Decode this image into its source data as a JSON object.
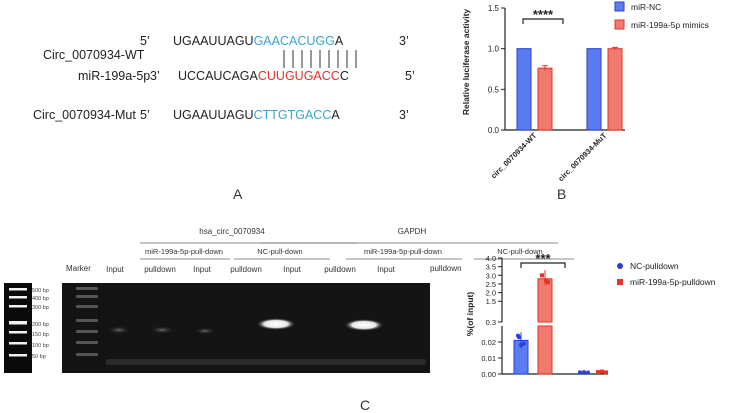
{
  "panelA": {
    "rows": [
      {
        "name": "Circ_0070934-WT",
        "left_end": "5’",
        "seq_plain": "UGAAUUAGU",
        "seq_colored": "GAACACUGG",
        "seq_tail": "A",
        "right_end": "3’",
        "color": "cyan"
      },
      {
        "name": "miR-199a-5p",
        "left_end": "3’",
        "seq_plain": "UCCAUCAGA",
        "seq_colored": "CUUGUGACC",
        "seq_tail": "C",
        "right_end": "5’",
        "color": "red"
      },
      {
        "name": "Circ_0070934-Mut",
        "left_end": "5’",
        "seq_plain": "UGAAUUAGU",
        "seq_colored": "CTTGTGACC",
        "seq_tail": "A",
        "right_end": "3’",
        "color": "cyan"
      }
    ],
    "label": "A"
  },
  "panelB": {
    "label": "B",
    "ylabel": "Relative luciferase activity",
    "yticks": [
      "0.0",
      "0.5",
      "1.0",
      "1.5"
    ],
    "categories": [
      "circ_0070934-WT",
      "circ_0070934-MuT"
    ],
    "legend": [
      "miR-NC",
      "miR-199a-5p mimics"
    ],
    "significance": "****"
  },
  "panelC": {
    "label": "C",
    "gel": {
      "group_headers": [
        "hsa_circ_0070934",
        "GAPDH"
      ],
      "sub_headers": [
        "miR-199a-5p-pull-down",
        "NC-pull-down",
        "miR-199a-5p-pull-down",
        "NC-pull-down"
      ],
      "lane_labels": [
        "Input",
        "pulldown",
        "Input",
        "pulldown",
        "Input",
        "pulldown",
        "Input",
        "pulldown"
      ],
      "marker_label": "Marker",
      "ladder": [
        "500 bp",
        "400 bp",
        "300 bp",
        "200 bp",
        "150 bp",
        "100 bp",
        "50 bp"
      ]
    },
    "plot": {
      "ylabel": "%(of input)",
      "yticks_top": [
        "4.0",
        "3.5",
        "3.0",
        "2.5",
        "2.0",
        "1.5",
        "0.3"
      ],
      "yticks_bottom": [
        "0.02",
        "0.01",
        "0.00"
      ],
      "legend": [
        "NC-pulldown",
        "miR-199a-5p-pulldown"
      ],
      "significance": "***"
    }
  },
  "colors": {
    "blue": "#5b7cf0",
    "red": "#f07a6e",
    "blue_dark": "#2a3fd6",
    "red_dark": "#e3352a",
    "cyan": "#3aa3d3"
  },
  "chart_data": [
    {
      "type": "bar",
      "categories": [
        "circ_0070934-WT",
        "circ_0070934-MuT"
      ],
      "series": [
        {
          "name": "miR-NC",
          "values": [
            1.0,
            1.0
          ]
        },
        {
          "name": "miR-199a-5p mimics",
          "values": [
            0.76,
            1.0
          ]
        }
      ],
      "xlabel": "",
      "ylabel": "Relative luciferase activity",
      "ylim": [
        0,
        1.5
      ],
      "legend": "top-right"
    },
    {
      "type": "bar",
      "categories": [
        "hsa_circ_0070934",
        "GAPDH"
      ],
      "series": [
        {
          "name": "NC-pulldown",
          "values": [
            0.021,
            0.001
          ]
        },
        {
          "name": "miR-199a-5p-pulldown",
          "values": [
            2.8,
            0.002
          ]
        }
      ],
      "xlabel": "",
      "ylabel": "%(of input)",
      "ylim": [
        0,
        4.0
      ],
      "legend": "top-right"
    }
  ]
}
